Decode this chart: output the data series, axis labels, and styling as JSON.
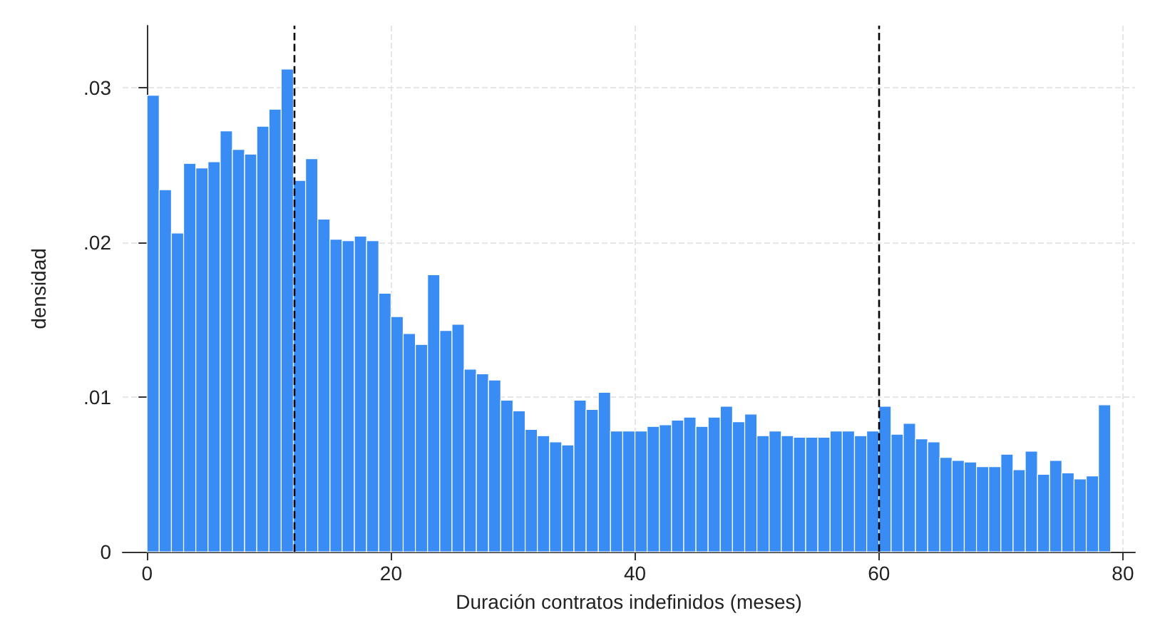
{
  "chart_data": {
    "type": "histogram",
    "xlabel": "Duración contratos indefinidos (meses)",
    "ylabel": "densidad",
    "bins": [
      0,
      1,
      2,
      3,
      4,
      5,
      6,
      7,
      8,
      9,
      10,
      11,
      12,
      13,
      14,
      15,
      16,
      17,
      18,
      19,
      20,
      21,
      22,
      23,
      24,
      25,
      26,
      27,
      28,
      29,
      30,
      31,
      32,
      33,
      34,
      35,
      36,
      37,
      38,
      39,
      40,
      41,
      42,
      43,
      44,
      45,
      46,
      47,
      48,
      49,
      50,
      51,
      52,
      53,
      54,
      55,
      56,
      57,
      58,
      59,
      60,
      61,
      62,
      63,
      64,
      65,
      66,
      67,
      68,
      69,
      70,
      71,
      72,
      73,
      74,
      75,
      76,
      77,
      78,
      79
    ],
    "values": [
      0.0295,
      0.0234,
      0.0206,
      0.0251,
      0.0248,
      0.0252,
      0.0272,
      0.026,
      0.0257,
      0.0275,
      0.0286,
      0.0312,
      0.024,
      0.0254,
      0.0215,
      0.0202,
      0.0201,
      0.0204,
      0.0201,
      0.0167,
      0.0152,
      0.0141,
      0.0134,
      0.0179,
      0.0143,
      0.0147,
      0.0118,
      0.0115,
      0.0111,
      0.0098,
      0.0091,
      0.0079,
      0.0075,
      0.0071,
      0.0069,
      0.0098,
      0.0092,
      0.0103,
      0.0078,
      0.0078,
      0.0078,
      0.0081,
      0.0082,
      0.0085,
      0.0087,
      0.0081,
      0.0087,
      0.0094,
      0.0084,
      0.0089,
      0.0075,
      0.0078,
      0.0075,
      0.0074,
      0.0074,
      0.0074,
      0.0078,
      0.0078,
      0.0075,
      0.0078,
      0.0094,
      0.0076,
      0.0083,
      0.0073,
      0.0071,
      0.0061,
      0.0059,
      0.0058,
      0.0055,
      0.0055,
      0.0063,
      0.0053,
      0.0065,
      0.005,
      0.0059,
      0.0051,
      0.0047,
      0.0049,
      0.0095
    ],
    "color": "#3a8cf5",
    "xlim": [
      -2,
      81
    ],
    "xticks": [
      0,
      20,
      40,
      60,
      80
    ],
    "ylim": [
      0,
      0.034
    ],
    "yticks": [
      0,
      {
        "value": 0.01,
        "label": ".01"
      },
      {
        "value": 0.02,
        "label": ".02"
      },
      {
        "value": 0.03,
        "label": ".03"
      }
    ],
    "grid": true,
    "ref_lines": [
      {
        "axis": "x",
        "value": 12,
        "line_style": "dashed",
        "color": "#000000"
      },
      {
        "axis": "x",
        "value": 60,
        "line_style": "dashed",
        "color": "#000000"
      }
    ]
  }
}
